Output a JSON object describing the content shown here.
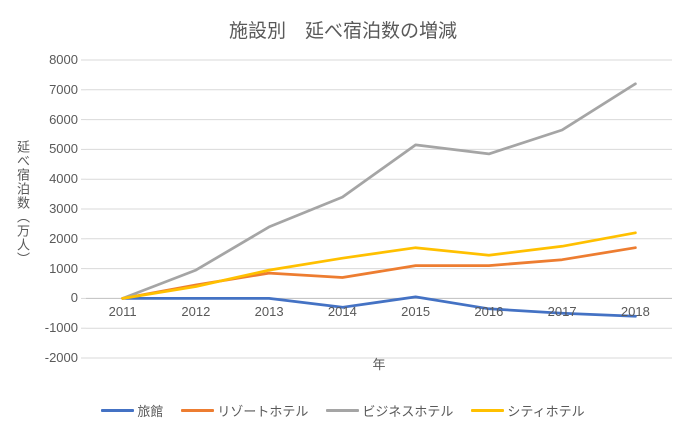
{
  "chart": {
    "title": "施設別　延べ宿泊数の増減"
  },
  "chart_data": {
    "type": "line",
    "title": "施設別　延べ宿泊数の増減",
    "xlabel": "年",
    "ylabel": "延べ宿泊数（万人）",
    "categories": [
      "2011",
      "2012",
      "2013",
      "2014",
      "2015",
      "2016",
      "2017",
      "2018"
    ],
    "series": [
      {
        "name": "旅館",
        "color": "#4472C4",
        "values": [
          0,
          0,
          0,
          -300,
          50,
          -350,
          -500,
          -600
        ]
      },
      {
        "name": "リゾートホテル",
        "color": "#ED7D31",
        "values": [
          0,
          450,
          850,
          700,
          1100,
          1100,
          1300,
          1700
        ]
      },
      {
        "name": "ビジネスホテル",
        "color": "#A5A5A5",
        "values": [
          0,
          950,
          2400,
          3400,
          5150,
          4850,
          5650,
          7200
        ]
      },
      {
        "name": "シティホテル",
        "color": "#FFC000",
        "values": [
          0,
          400,
          950,
          1350,
          1700,
          1450,
          1750,
          2200
        ]
      }
    ],
    "ylim": [
      -2000,
      8000
    ],
    "ytick_step": 1000,
    "ytick_labels": [
      "8000",
      "7000",
      "6000",
      "5000",
      "4000",
      "3000",
      "2000",
      "1000",
      "0",
      "-1000",
      "-2000"
    ],
    "grid": true,
    "legend_position": "bottom",
    "gridline_color": "#D9D9D9",
    "axisline_color": "#BFBFBF",
    "text_color": "#595959"
  }
}
